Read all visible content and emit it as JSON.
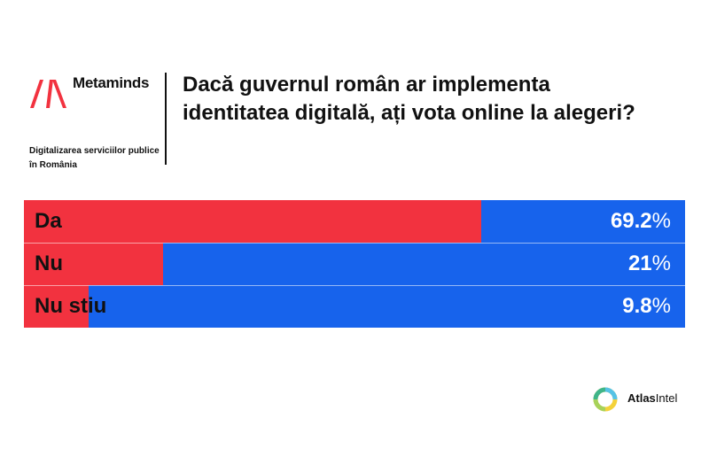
{
  "header": {
    "brand_name": "Metaminds",
    "logo_icon": "metaminds-logo-icon",
    "subtitle_lines": [
      "Digitalizarea serviciilor publice",
      "în România"
    ],
    "title_lines": [
      "Dacă guvernul român ar implementa",
      "identitatea digitală, ați vota online la alegeri?"
    ]
  },
  "colors": {
    "red": "#f2323f",
    "blue": "#1763ec",
    "divider": "#111111"
  },
  "chart_data": {
    "type": "bar",
    "orientation": "horizontal",
    "categories": [
      "Da",
      "Nu",
      "Nu stiu"
    ],
    "values": [
      69.2,
      21,
      9.8
    ],
    "value_labels": [
      "69.2",
      "21",
      "9.8"
    ],
    "value_suffix": "%",
    "xlim": [
      0,
      100
    ],
    "title": "Dacă guvernul român ar implementa identitatea digitală, ați vota online la alegeri?",
    "grid": false,
    "legend": "none"
  },
  "footer": {
    "source_icon": "atlasintel-logo-icon",
    "source_bold": "Atlas",
    "source_rest": "Intel"
  }
}
